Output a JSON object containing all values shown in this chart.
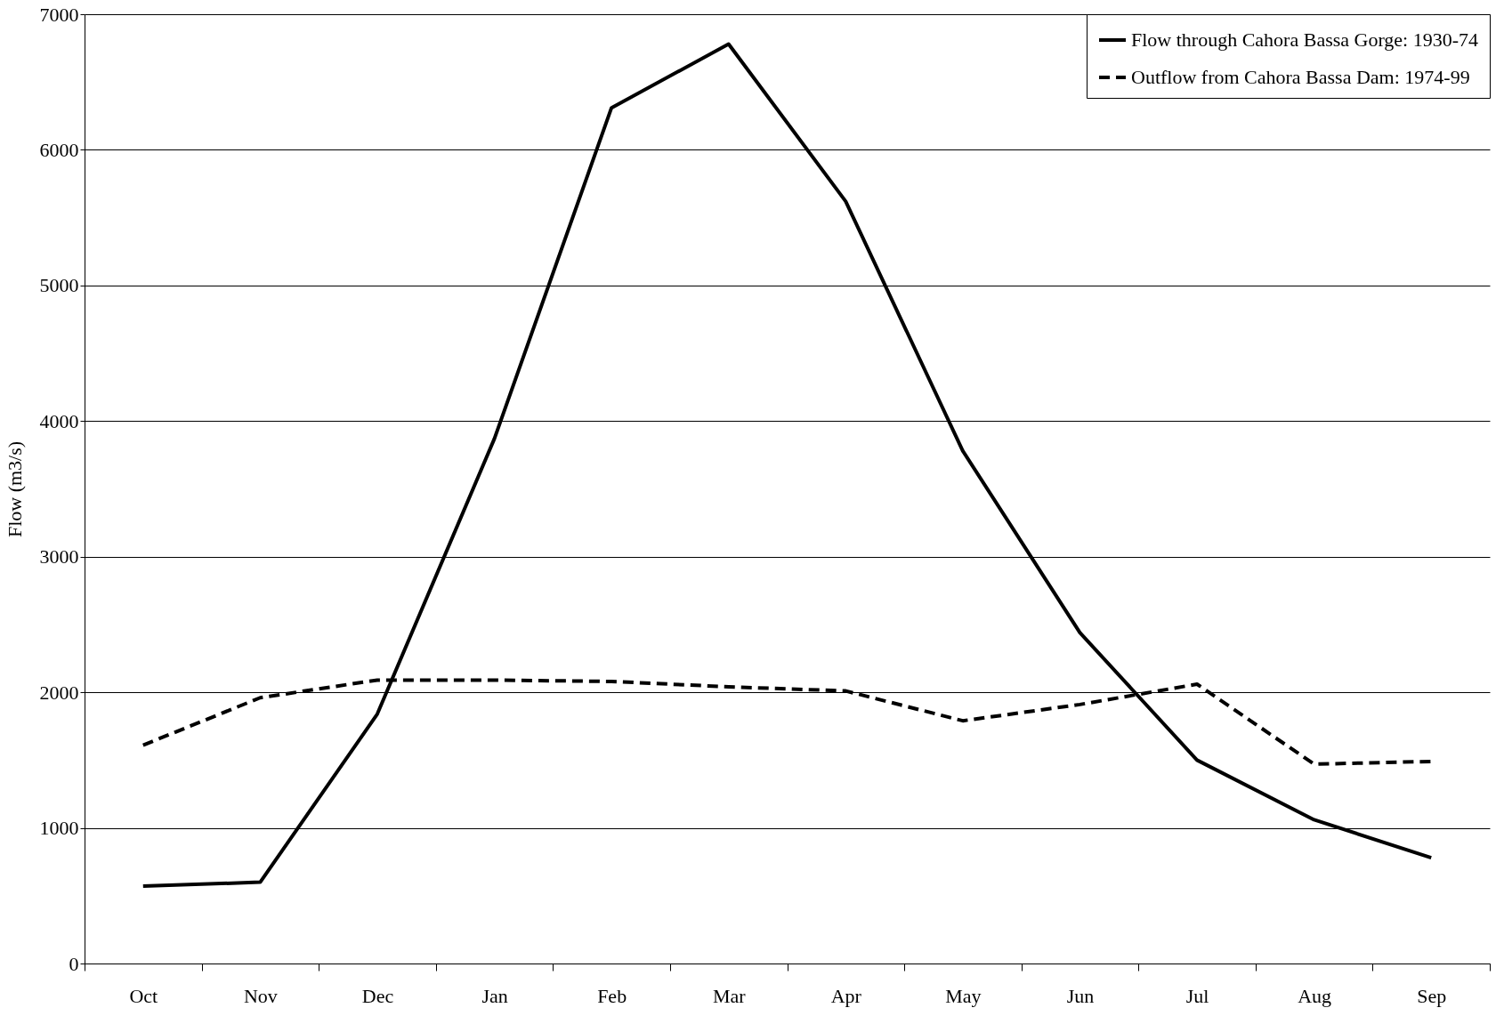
{
  "chart_data": {
    "type": "line",
    "ylabel": "Flow (m3/s)",
    "categories": [
      "Oct",
      "Nov",
      "Dec",
      "Jan",
      "Feb",
      "Mar",
      "Apr",
      "May",
      "Jun",
      "Jul",
      "Aug",
      "Sep"
    ],
    "series": [
      {
        "name": "Flow through Cahora Bassa Gorge: 1930-74",
        "color": "#000000",
        "line_style": "solid",
        "values": [
          570,
          600,
          1840,
          3870,
          6310,
          6780,
          5620,
          3780,
          2440,
          1500,
          1060,
          780
        ]
      },
      {
        "name": "Outflow from Cahora Bassa Dam: 1974-99",
        "color": "#000000",
        "line_style": "dashed",
        "values": [
          1610,
          1960,
          2090,
          2090,
          2080,
          2040,
          2010,
          1790,
          1910,
          2060,
          1470,
          1490
        ]
      }
    ],
    "ylim": [
      0,
      7000
    ],
    "yticks": [
      0,
      1000,
      2000,
      3000,
      4000,
      5000,
      6000,
      7000
    ],
    "grid": "y",
    "legend": "top right",
    "marker": "none"
  }
}
